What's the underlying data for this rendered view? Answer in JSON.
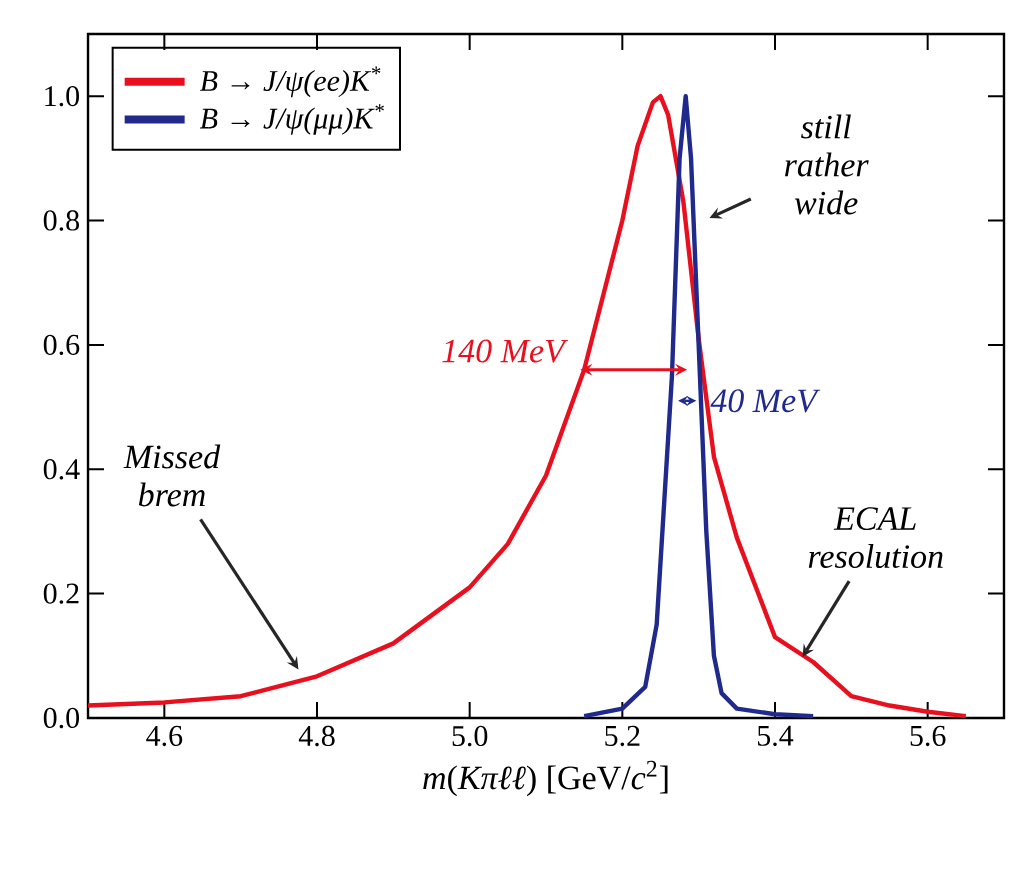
{
  "chart_data": {
    "type": "line",
    "xlabel": "*m*(*Kπℓℓ*) [GeV/*c*$^{2}$]",
    "xlim": [
      4.5,
      5.7
    ],
    "xticks": [
      {
        "value": 4.6,
        "label": "4.6"
      },
      {
        "value": 4.8,
        "label": "4.8"
      },
      {
        "value": 5.0,
        "label": "5.0"
      },
      {
        "value": 5.2,
        "label": "5.2"
      },
      {
        "value": 5.4,
        "label": "5.4"
      },
      {
        "value": 5.6,
        "label": "5.6"
      }
    ],
    "ylim": [
      0,
      1.1
    ],
    "yticks": [
      {
        "value": 0,
        "label": "0.0"
      },
      {
        "value": 0.2,
        "label": "0.2"
      },
      {
        "value": 0.4,
        "label": "0.4"
      },
      {
        "value": 0.6,
        "label": "0.6"
      },
      {
        "value": 0.8,
        "label": "0.8"
      },
      {
        "value": 1.0,
        "label": "1.0"
      }
    ],
    "legend": "top left",
    "grid": false,
    "marker": "none",
    "series": [
      {
        "name": "B → J/ψ(ee)K$^{*}$",
        "color": "#e8101e",
        "x": [
          4.5,
          4.6,
          4.7,
          4.8,
          4.9,
          5.0,
          5.05,
          5.1,
          5.15,
          5.2,
          5.22,
          5.24,
          5.25,
          5.26,
          5.27,
          5.28,
          5.3,
          5.32,
          5.35,
          5.4,
          5.45,
          5.5,
          5.55,
          5.6,
          5.65
        ],
        "values": [
          0.02,
          0.025,
          0.035,
          0.067,
          0.12,
          0.21,
          0.28,
          0.39,
          0.56,
          0.8,
          0.92,
          0.99,
          1.0,
          0.97,
          0.9,
          0.83,
          0.61,
          0.42,
          0.29,
          0.13,
          0.09,
          0.035,
          0.02,
          0.01,
          0.003
        ]
      },
      {
        "name": "B → J/ψ(μμ)K$^{*}$",
        "color": "#1f2a8c",
        "x": [
          5.15,
          5.2,
          5.23,
          5.245,
          5.255,
          5.265,
          5.275,
          5.283,
          5.29,
          5.3,
          5.31,
          5.32,
          5.33,
          5.35,
          5.4,
          5.45
        ],
        "values": [
          0.003,
          0.015,
          0.05,
          0.15,
          0.35,
          0.55,
          0.9,
          1.0,
          0.9,
          0.6,
          0.3,
          0.1,
          0.04,
          0.015,
          0.006,
          0.003
        ]
      }
    ],
    "annotations": [
      "140 MeV",
      "40 MeV",
      {
        "text": "still rather wide",
        "x": 5.307,
        "y": 0.8
      },
      {
        "text": "Missed brem",
        "x": 4.78,
        "y": 0.07
      },
      {
        "text": "ECAL resolution",
        "x": 5.432,
        "y": 0.09
      }
    ]
  }
}
